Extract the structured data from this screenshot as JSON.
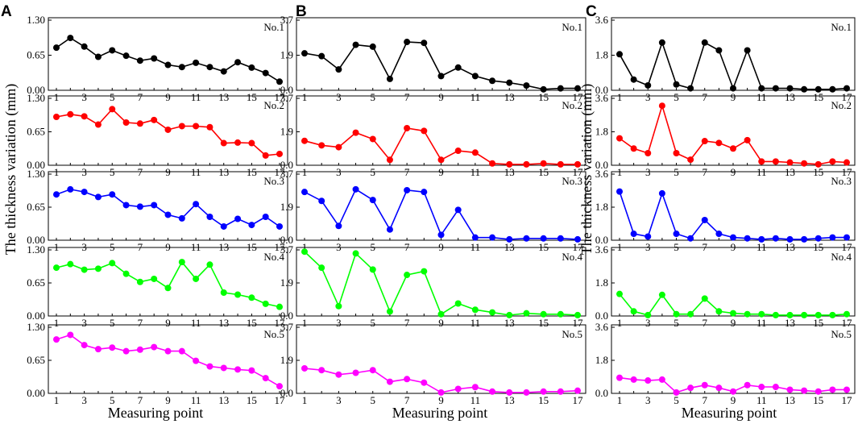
{
  "figure": {
    "panel_labels": [
      "A",
      "B",
      "C"
    ],
    "ylabel": "The thickness variation (mm)",
    "xlabel": "Measuring point"
  },
  "chart_data": [
    {
      "type": "line",
      "panel": "A",
      "x": [
        1,
        2,
        3,
        4,
        5,
        6,
        7,
        8,
        9,
        10,
        11,
        12,
        13,
        14,
        15,
        16,
        17
      ],
      "x_ticks": [
        1,
        3,
        5,
        7,
        9,
        11,
        13,
        15,
        17
      ],
      "ylim": [
        0,
        1.3
      ],
      "y_ticks": [
        "0.00",
        "0.65",
        "1.30"
      ],
      "xlabel": "Measuring point",
      "series": [
        {
          "name": "No.1",
          "color": "#000000",
          "values": [
            0.79,
            0.97,
            0.81,
            0.62,
            0.74,
            0.64,
            0.55,
            0.59,
            0.47,
            0.43,
            0.51,
            0.43,
            0.35,
            0.52,
            0.42,
            0.32,
            0.16
          ]
        },
        {
          "name": "No.2",
          "color": "#ff0000",
          "values": [
            0.94,
            0.99,
            0.95,
            0.79,
            1.09,
            0.83,
            0.81,
            0.88,
            0.69,
            0.76,
            0.76,
            0.74,
            0.43,
            0.44,
            0.43,
            0.19,
            0.22
          ]
        },
        {
          "name": "No.3",
          "color": "#0000ff",
          "values": [
            0.9,
            1.0,
            0.95,
            0.85,
            0.9,
            0.69,
            0.66,
            0.69,
            0.5,
            0.43,
            0.71,
            0.46,
            0.27,
            0.42,
            0.3,
            0.46,
            0.27
          ]
        },
        {
          "name": "No.4",
          "color": "#00ff00",
          "values": [
            0.95,
            1.02,
            0.91,
            0.93,
            1.04,
            0.83,
            0.67,
            0.73,
            0.55,
            1.06,
            0.73,
            1.01,
            0.46,
            0.42,
            0.36,
            0.24,
            0.18
          ]
        },
        {
          "name": "No.5",
          "color": "#ff00ff",
          "values": [
            1.06,
            1.15,
            0.95,
            0.87,
            0.9,
            0.83,
            0.86,
            0.91,
            0.83,
            0.83,
            0.64,
            0.53,
            0.5,
            0.47,
            0.45,
            0.3,
            0.14
          ]
        }
      ]
    },
    {
      "type": "line",
      "panel": "B",
      "x": [
        1,
        2,
        3,
        4,
        5,
        6,
        7,
        8,
        9,
        10,
        11,
        12,
        13,
        14,
        15,
        16,
        17
      ],
      "x_ticks": [
        1,
        3,
        5,
        7,
        9,
        11,
        13,
        15,
        17
      ],
      "ylim": [
        0,
        3.7
      ],
      "y_ticks": [
        "0.0",
        "1.9",
        "3.7"
      ],
      "xlabel": "Measuring point",
      "series": [
        {
          "name": "No.1",
          "color": "#000000",
          "values": [
            1.95,
            1.8,
            1.1,
            2.4,
            2.3,
            0.6,
            2.55,
            2.5,
            0.75,
            1.2,
            0.75,
            0.5,
            0.4,
            0.25,
            0.05,
            0.1,
            0.1
          ]
        },
        {
          "name": "No.2",
          "color": "#ff0000",
          "values": [
            1.35,
            1.1,
            1.0,
            1.8,
            1.45,
            0.3,
            2.05,
            1.9,
            0.3,
            0.8,
            0.7,
            0.1,
            0.05,
            0.05,
            0.1,
            0.05,
            0.05
          ]
        },
        {
          "name": "No.3",
          "color": "#0000ff",
          "values": [
            2.7,
            2.2,
            0.8,
            2.85,
            2.25,
            0.6,
            2.8,
            2.7,
            0.3,
            1.7,
            0.15,
            0.15,
            0.05,
            0.1,
            0.1,
            0.1,
            0.05
          ]
        },
        {
          "name": "No.4",
          "color": "#00ff00",
          "values": [
            3.6,
            2.7,
            0.55,
            3.5,
            2.6,
            0.25,
            2.3,
            2.5,
            0.1,
            0.7,
            0.35,
            0.2,
            0.05,
            0.15,
            0.1,
            0.1,
            0.05
          ]
        },
        {
          "name": "No.5",
          "color": "#ff00ff",
          "values": [
            1.4,
            1.3,
            1.05,
            1.15,
            1.3,
            0.65,
            0.8,
            0.6,
            0.05,
            0.25,
            0.35,
            0.1,
            0.05,
            0.05,
            0.1,
            0.1,
            0.15
          ]
        }
      ]
    },
    {
      "type": "line",
      "panel": "C",
      "x": [
        1,
        2,
        3,
        4,
        5,
        6,
        7,
        8,
        9,
        10,
        11,
        12,
        13,
        14,
        15,
        16,
        17
      ],
      "x_ticks": [
        1,
        3,
        5,
        7,
        9,
        11,
        13,
        15,
        17
      ],
      "ylim": [
        0,
        3.6
      ],
      "y_ticks": [
        "0.0",
        "1.8",
        "3.6"
      ],
      "xlabel": "Measuring point",
      "series": [
        {
          "name": "No.1",
          "color": "#000000",
          "values": [
            1.85,
            0.55,
            0.25,
            2.45,
            0.3,
            0.1,
            2.45,
            2.05,
            0.1,
            2.05,
            0.1,
            0.1,
            0.1,
            0.05,
            0.05,
            0.05,
            0.1
          ]
        },
        {
          "name": "No.2",
          "color": "#ff0000",
          "values": [
            1.45,
            0.9,
            0.65,
            3.2,
            0.65,
            0.3,
            1.3,
            1.2,
            0.9,
            1.35,
            0.2,
            0.2,
            0.15,
            0.1,
            0.05,
            0.2,
            0.15
          ]
        },
        {
          "name": "No.3",
          "color": "#0000ff",
          "values": [
            2.65,
            0.35,
            0.2,
            2.55,
            0.35,
            0.1,
            1.1,
            0.35,
            0.15,
            0.1,
            0.05,
            0.1,
            0.05,
            0.05,
            0.1,
            0.15,
            0.15
          ]
        },
        {
          "name": "No.4",
          "color": "#00ff00",
          "values": [
            1.2,
            0.25,
            0.05,
            1.15,
            0.1,
            0.1,
            0.95,
            0.25,
            0.15,
            0.1,
            0.1,
            0.05,
            0.05,
            0.05,
            0.05,
            0.05,
            0.1
          ]
        },
        {
          "name": "No.5",
          "color": "#ff00ff",
          "values": [
            0.85,
            0.75,
            0.7,
            0.75,
            0.05,
            0.3,
            0.45,
            0.3,
            0.1,
            0.45,
            0.35,
            0.35,
            0.2,
            0.15,
            0.1,
            0.2,
            0.2
          ]
        }
      ]
    }
  ]
}
